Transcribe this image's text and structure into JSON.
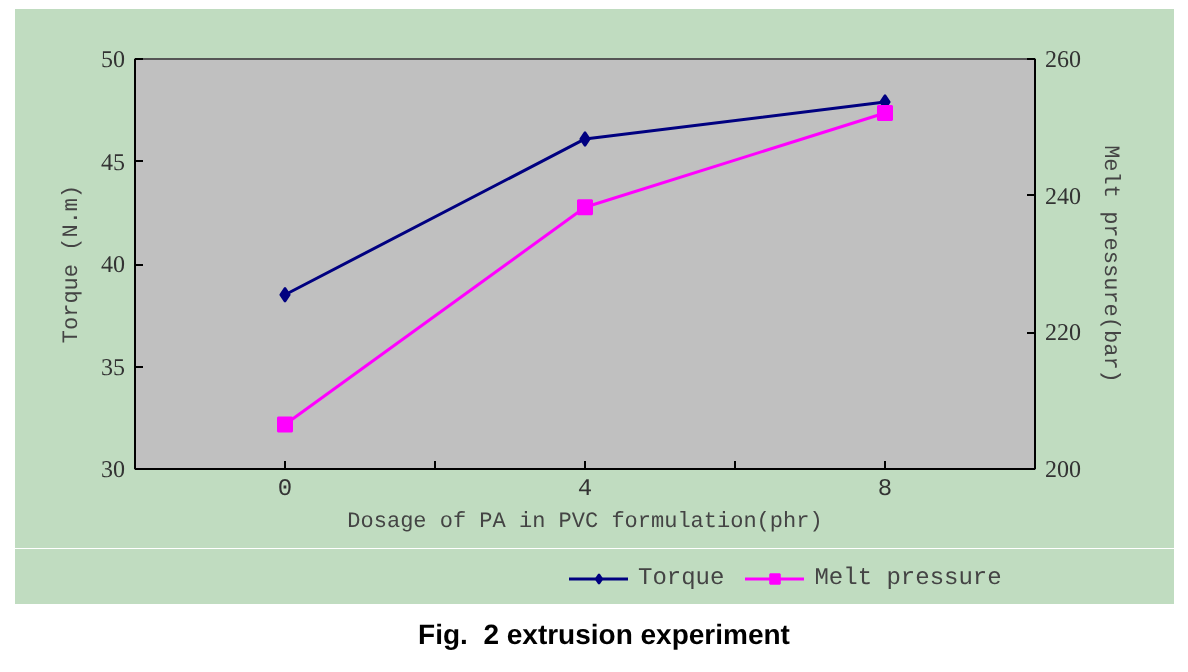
{
  "chart_data": {
    "type": "line",
    "title": "Fig.  2 extrusion experiment",
    "xlabel": "Dosage of PA in PVC formulation(phr)",
    "ylabel": "Torque (N.m)",
    "y2label": "Melt pressure(bar)",
    "categories": [
      "0",
      "4",
      "8"
    ],
    "series": [
      {
        "name": "Torque",
        "color": "#000080",
        "marker": "diamond",
        "values": [
          38.5,
          46.1,
          47.9
        ]
      },
      {
        "name": "Melt pressure",
        "color": "#ff00ff",
        "marker": "square",
        "axis": "y2",
        "values": [
          206.5,
          238.3,
          252.1
        ]
      }
    ],
    "ylim": [
      30,
      50
    ],
    "yticks": [
      30,
      35,
      40,
      45,
      50
    ],
    "y2lim": [
      200,
      260
    ],
    "y2ticks": [
      200,
      220,
      240,
      260
    ],
    "grid": false,
    "legend": "bottom"
  }
}
